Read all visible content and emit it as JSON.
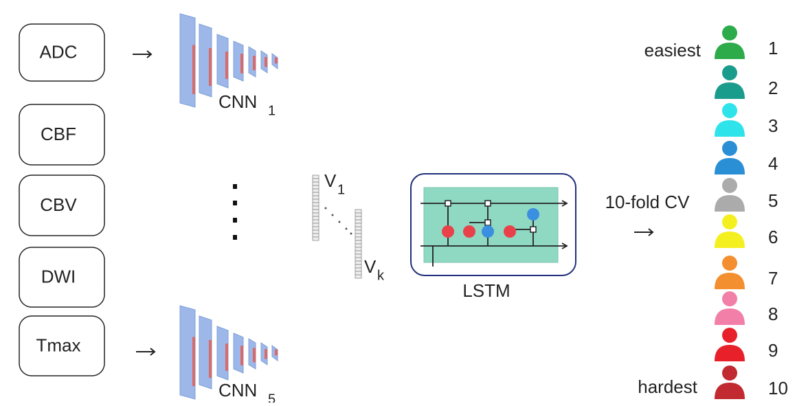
{
  "inputs": [
    "ADC",
    "CBF",
    "CBV",
    "DWI",
    "Tmax"
  ],
  "cnns": [
    {
      "label": "CNN",
      "sub": "1"
    },
    {
      "label": "CNN",
      "sub": "5"
    }
  ],
  "vectors": [
    {
      "label": "V",
      "sub": "1"
    },
    {
      "label": "V",
      "sub": "k"
    }
  ],
  "lstm": {
    "label": "LSTM"
  },
  "cv": {
    "label": "10-fold CV"
  },
  "ranking": {
    "easiest": "easiest",
    "hardest": "hardest",
    "ranks": [
      1,
      2,
      3,
      4,
      5,
      6,
      7,
      8,
      9,
      10
    ],
    "colors": [
      "#2dab4b",
      "#1a9c8c",
      "#2ee3ea",
      "#2b8fd6",
      "#ababab",
      "#f4f020",
      "#f48f30",
      "#f17fa8",
      "#e8202a",
      "#c12a30"
    ]
  }
}
